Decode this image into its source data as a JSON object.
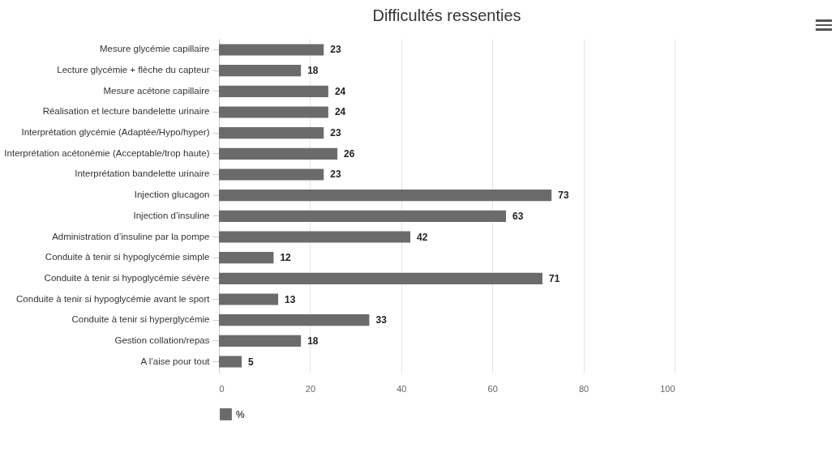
{
  "chart_data": {
    "type": "bar",
    "orientation": "horizontal",
    "title": "Difficultés ressenties",
    "categories": [
      "Mesure glycémie capillaire",
      "Lecture glycémie + flèche du capteur",
      "Mesure acétone capillaire",
      "Réalisation et lecture bandelette urinaire",
      "Interprétation glycémie (Adaptée/Hypo/hyper)",
      "Interprétation acétonémie (Acceptable/trop haute)",
      "Interprétation bandelette urinaire",
      "Injection glucagon",
      "Injection d’insuline",
      "Administration d’insuline par la pompe",
      "Conduite à tenir si hypoglycémie simple",
      "Conduite à tenir si hypoglycémie sévère",
      "Conduite à tenir si hypoglycémie avant le sport",
      "Conduite à tenir si hyperglycémie",
      "Gestion collation/repas",
      "A l’aise pour tout"
    ],
    "series": [
      {
        "name": "%",
        "color": "#6b6b6b",
        "values": [
          23,
          18,
          24,
          24,
          23,
          26,
          23,
          73,
          63,
          42,
          12,
          71,
          13,
          33,
          18,
          5
        ]
      }
    ],
    "xlim": [
      0,
      100
    ],
    "xticks": [
      0,
      20,
      40,
      60,
      80,
      100
    ],
    "grid": "x",
    "legend": "bottom",
    "data_labels": true
  }
}
